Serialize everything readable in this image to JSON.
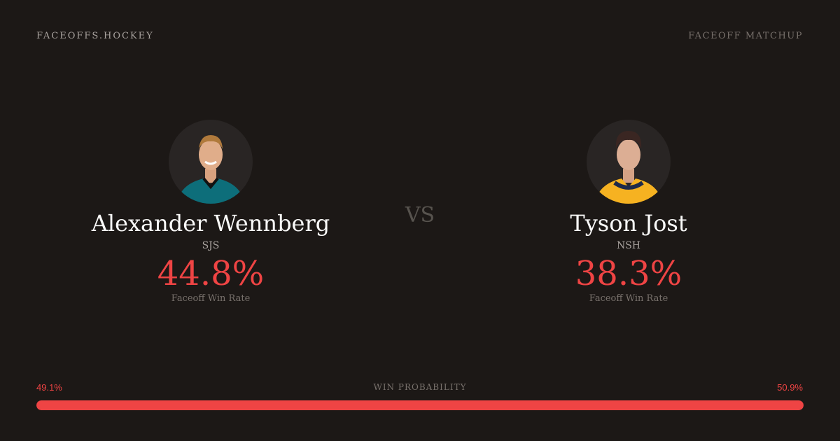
{
  "header": {
    "brand": "FACEOFFS.HOCKEY",
    "title": "FACEOFF MATCHUP"
  },
  "players": [
    {
      "name": "Alexander Wennberg",
      "team": "SJS",
      "win_rate": "44.8%",
      "win_rate_label": "Faceoff Win Rate",
      "jersey_color": "#0d6e7a",
      "trim_color": "#111111"
    },
    {
      "name": "Tyson Jost",
      "team": "NSH",
      "win_rate": "38.3%",
      "win_rate_label": "Faceoff Win Rate",
      "jersey_color": "#f6b221",
      "trim_color": "#1e2a4a"
    }
  ],
  "vs_label": "VS",
  "win_probability": {
    "title": "WIN PROBABILITY",
    "left": "49.1%",
    "right": "50.9%",
    "fill_percent": 100,
    "bar_color": "#ef4444"
  }
}
